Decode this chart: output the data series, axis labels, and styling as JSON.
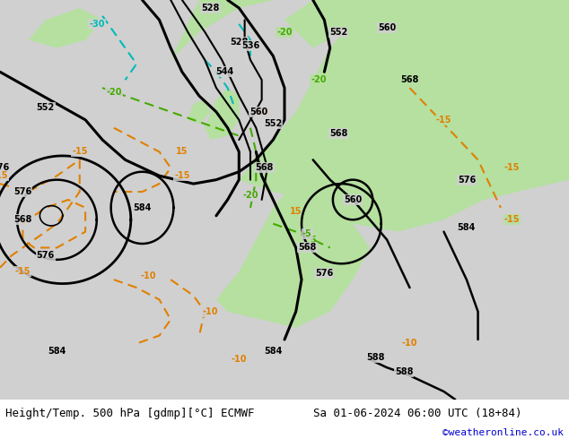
{
  "title_left": "Height/Temp. 500 hPa [gdmp][°C] ECMWF",
  "title_right": "Sa 01-06-2024 06:00 UTC (18+84)",
  "credit": "©weatheronline.co.uk",
  "footer_bg": "#ffffff",
  "credit_color": "#0000cc"
}
